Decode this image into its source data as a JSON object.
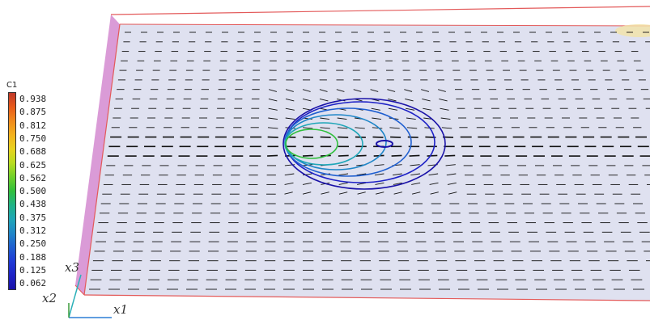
{
  "legend": {
    "title": "C1",
    "labels": [
      "0.938",
      "0.875",
      "0.812",
      "0.750",
      "0.688",
      "0.625",
      "0.562",
      "0.500",
      "0.438",
      "0.375",
      "0.312",
      "0.250",
      "0.188",
      "0.125",
      "0.062"
    ],
    "colors": [
      "#c0392b",
      "#e85a1a",
      "#f08a1c",
      "#f3b21d",
      "#e8d21e",
      "#b8dc1f",
      "#6fd02a",
      "#2fbf3c",
      "#1fb386",
      "#1fa6b8",
      "#1f86c8",
      "#1f5fd0",
      "#1f3ad6",
      "#1e22c6",
      "#1a12a8"
    ]
  },
  "axes": {
    "x1": "x1",
    "x2": "x2",
    "x3": "x3"
  },
  "contour_colors": [
    "#1a12a8",
    "#1e22c6",
    "#1f5fd0",
    "#1f86c8",
    "#1fa6b8",
    "#2fbf3c"
  ],
  "plate_color": "#dfe1f0",
  "plate_edge_color": "#e35a5a",
  "side_face_color": "#d48ad0"
}
